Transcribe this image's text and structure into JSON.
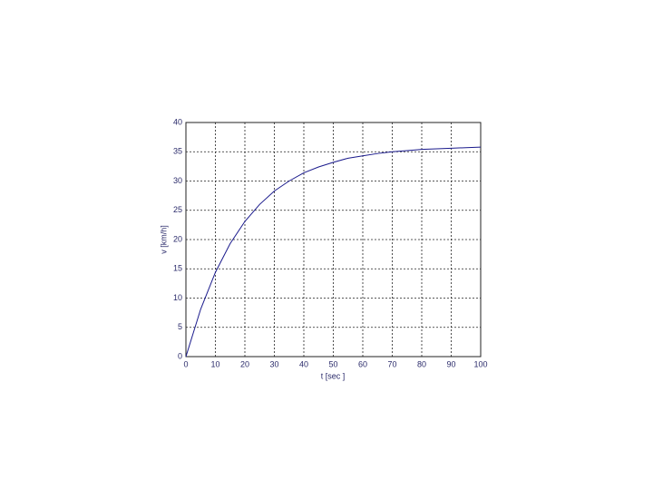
{
  "chart_data": {
    "type": "line",
    "xlabel": "t [sec ]",
    "ylabel": "v [km/h]",
    "x": [
      0,
      5,
      10,
      15,
      20,
      25,
      30,
      35,
      40,
      45,
      50,
      55,
      60,
      65,
      70,
      75,
      80,
      85,
      90,
      95,
      100
    ],
    "series": [
      {
        "color": "#1a1a8c",
        "values": [
          0,
          8.1,
          14.4,
          19.3,
          23.1,
          26.0,
          28.3,
          30.0,
          31.4,
          32.4,
          33.2,
          33.9,
          34.3,
          34.7,
          35.0,
          35.2,
          35.4,
          35.5,
          35.6,
          35.7,
          35.8
        ]
      }
    ],
    "xlim": [
      0,
      100
    ],
    "xticks": [
      0,
      10,
      20,
      30,
      40,
      50,
      60,
      70,
      80,
      90,
      100
    ],
    "ylim": [
      0,
      40
    ],
    "yticks": [
      0,
      5,
      10,
      15,
      20,
      25,
      30,
      35,
      40
    ],
    "grid": true
  }
}
